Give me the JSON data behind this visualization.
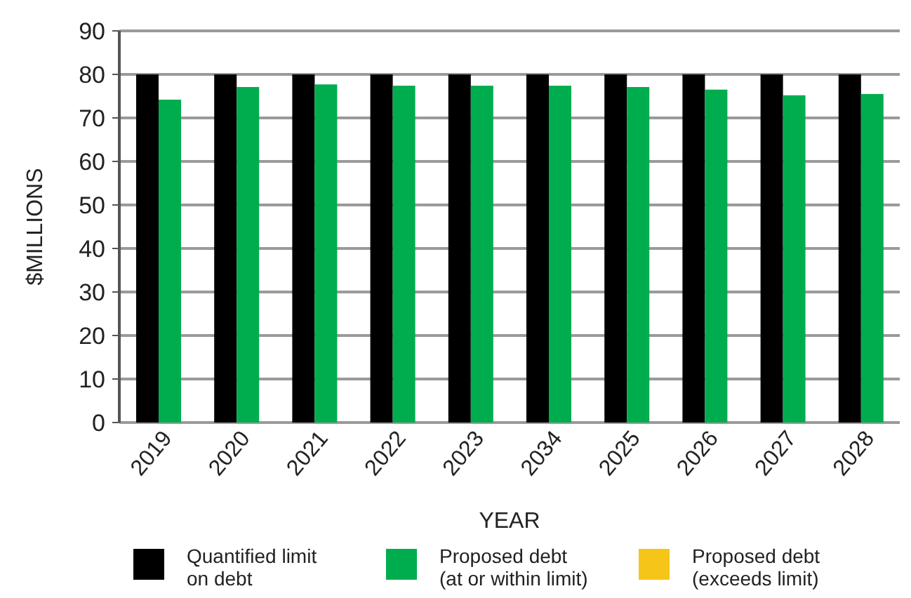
{
  "chart_data": {
    "type": "bar",
    "xlabel": "YEAR",
    "ylabel": "$MILLIONS",
    "categories": [
      "2019",
      "2020",
      "2021",
      "2022",
      "2023",
      "2034",
      "2025",
      "2026",
      "2027",
      "2028"
    ],
    "series": [
      {
        "name": "Quantified limit on debt",
        "color": "#000000",
        "values": [
          80,
          80,
          80,
          80,
          80,
          80,
          80,
          80,
          80,
          80
        ]
      },
      {
        "name": "Proposed debt (at or within limit)",
        "color": "#00ad4e",
        "values": [
          74.2,
          77.1,
          77.7,
          77.4,
          77.4,
          77.4,
          77.1,
          76.5,
          75.2,
          75.5
        ]
      },
      {
        "name": "Proposed debt (exceeds limit)",
        "color": "#f5c518",
        "values": [
          null,
          null,
          null,
          null,
          null,
          null,
          null,
          null,
          null,
          null
        ]
      }
    ],
    "ylim": [
      0,
      90
    ],
    "yticks": [
      0,
      10,
      20,
      30,
      40,
      50,
      60,
      70,
      80,
      90
    ],
    "grid": "y",
    "legend": "bottom"
  }
}
